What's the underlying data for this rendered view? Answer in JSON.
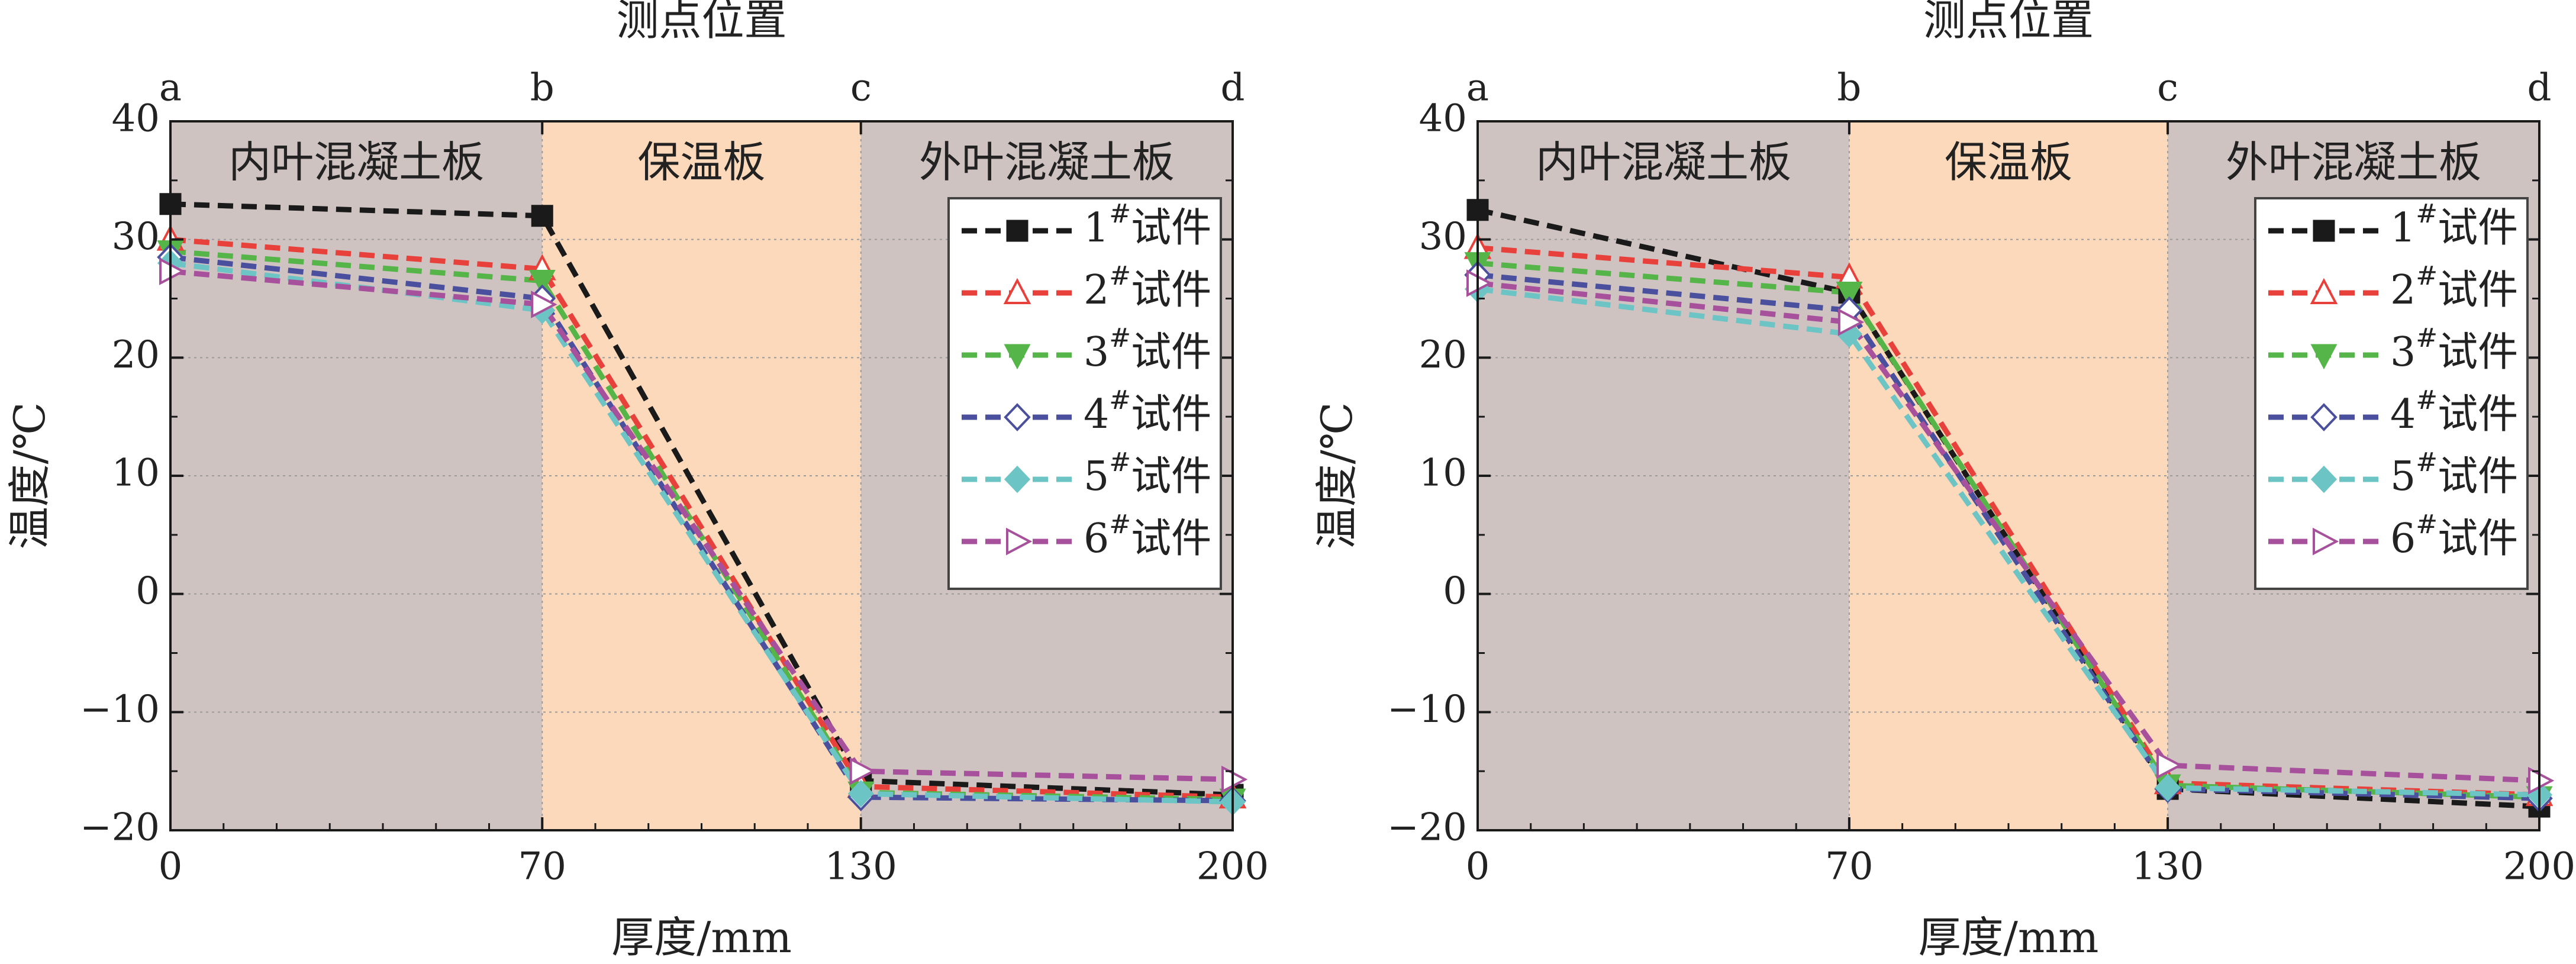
{
  "chart_data": [
    {
      "type": "line",
      "title": "",
      "top_axis_title": "测点位置",
      "top_ticks": [
        {
          "x": 0,
          "label": "a"
        },
        {
          "x": 70,
          "label": "b"
        },
        {
          "x": 130,
          "label": "c"
        },
        {
          "x": 200,
          "label": "d"
        }
      ],
      "xlabel": "厚度/mm",
      "ylabel": "温度/℃",
      "xlim": [
        0,
        200
      ],
      "ylim": [
        -20,
        40
      ],
      "x_ticks": [
        0,
        70,
        130,
        200
      ],
      "y_ticks": [
        -20,
        -10,
        0,
        10,
        20,
        30,
        40
      ],
      "y_tick_labels": [
        "−20",
        "−10",
        "0",
        "10",
        "20",
        "30",
        "40"
      ],
      "grid": true,
      "legend_position": "top-right",
      "regions": [
        {
          "from": 0,
          "to": 70,
          "label": "内叶混凝土板",
          "color": "#cfc3c2"
        },
        {
          "from": 70,
          "to": 130,
          "label": "保温板",
          "color": "#fcd9bb"
        },
        {
          "from": 130,
          "to": 200,
          "label": "外叶混凝土板",
          "color": "#cfc3c2"
        }
      ],
      "x": [
        0,
        70,
        130,
        200
      ],
      "series": [
        {
          "name": "1",
          "name_sup": "#",
          "name_suffix": "试件",
          "color": "#1a1a1a",
          "marker": "square-filled",
          "values": [
            33.0,
            32.0,
            -15.8,
            -17.0
          ]
        },
        {
          "name": "2",
          "name_sup": "#",
          "name_suffix": "试件",
          "color": "#e8413c",
          "marker": "triangle-up-open",
          "values": [
            30.0,
            27.5,
            -16.3,
            -17.2
          ]
        },
        {
          "name": "3",
          "name_sup": "#",
          "name_suffix": "试件",
          "color": "#55b548",
          "marker": "triangle-down-filled",
          "values": [
            29.0,
            26.5,
            -16.8,
            -17.4
          ]
        },
        {
          "name": "4",
          "name_sup": "#",
          "name_suffix": "试件",
          "color": "#4a4f9e",
          "marker": "diamond-open",
          "values": [
            28.5,
            25.0,
            -17.2,
            -17.5
          ]
        },
        {
          "name": "5",
          "name_sup": "#",
          "name_suffix": "试件",
          "color": "#6cc4c4",
          "marker": "diamond-filled",
          "values": [
            28.0,
            24.0,
            -16.9,
            -17.6
          ]
        },
        {
          "name": "6",
          "name_sup": "#",
          "name_suffix": "试件",
          "color": "#a7509c",
          "marker": "triangle-right-open",
          "values": [
            27.3,
            24.5,
            -15.0,
            -15.7
          ]
        }
      ]
    },
    {
      "type": "line",
      "title": "",
      "top_axis_title": "测点位置",
      "top_ticks": [
        {
          "x": 0,
          "label": "a"
        },
        {
          "x": 70,
          "label": "b"
        },
        {
          "x": 130,
          "label": "c"
        },
        {
          "x": 200,
          "label": "d"
        }
      ],
      "xlabel": "厚度/mm",
      "ylabel": "温度/℃",
      "xlim": [
        0,
        200
      ],
      "ylim": [
        -20,
        40
      ],
      "x_ticks": [
        0,
        70,
        130,
        200
      ],
      "y_ticks": [
        -20,
        -10,
        0,
        10,
        20,
        30,
        40
      ],
      "y_tick_labels": [
        "−20",
        "−10",
        "0",
        "10",
        "20",
        "30",
        "40"
      ],
      "grid": true,
      "legend_position": "top-right",
      "regions": [
        {
          "from": 0,
          "to": 70,
          "label": "内叶混凝土板",
          "color": "#cfc3c2"
        },
        {
          "from": 70,
          "to": 130,
          "label": "保温板",
          "color": "#fcd9bb"
        },
        {
          "from": 130,
          "to": 200,
          "label": "外叶混凝土板",
          "color": "#cfc3c2"
        }
      ],
      "x": [
        0,
        70,
        130,
        200
      ],
      "series": [
        {
          "name": "1",
          "name_sup": "#",
          "name_suffix": "试件",
          "color": "#1a1a1a",
          "marker": "square-filled",
          "values": [
            32.5,
            25.5,
            -16.5,
            -18.0
          ]
        },
        {
          "name": "2",
          "name_sup": "#",
          "name_suffix": "试件",
          "color": "#e8413c",
          "marker": "triangle-up-open",
          "values": [
            29.3,
            26.8,
            -16.0,
            -17.0
          ]
        },
        {
          "name": "3",
          "name_sup": "#",
          "name_suffix": "试件",
          "color": "#55b548",
          "marker": "triangle-down-filled",
          "values": [
            28.0,
            25.5,
            -16.2,
            -17.2
          ]
        },
        {
          "name": "4",
          "name_sup": "#",
          "name_suffix": "试件",
          "color": "#4a4f9e",
          "marker": "diamond-open",
          "values": [
            27.0,
            24.0,
            -16.5,
            -17.3
          ]
        },
        {
          "name": "5",
          "name_sup": "#",
          "name_suffix": "试件",
          "color": "#6cc4c4",
          "marker": "diamond-filled",
          "values": [
            25.8,
            22.0,
            -16.4,
            -17.0
          ]
        },
        {
          "name": "6",
          "name_sup": "#",
          "name_suffix": "试件",
          "color": "#a7509c",
          "marker": "triangle-right-open",
          "values": [
            26.3,
            23.0,
            -14.5,
            -15.8
          ]
        }
      ]
    }
  ]
}
